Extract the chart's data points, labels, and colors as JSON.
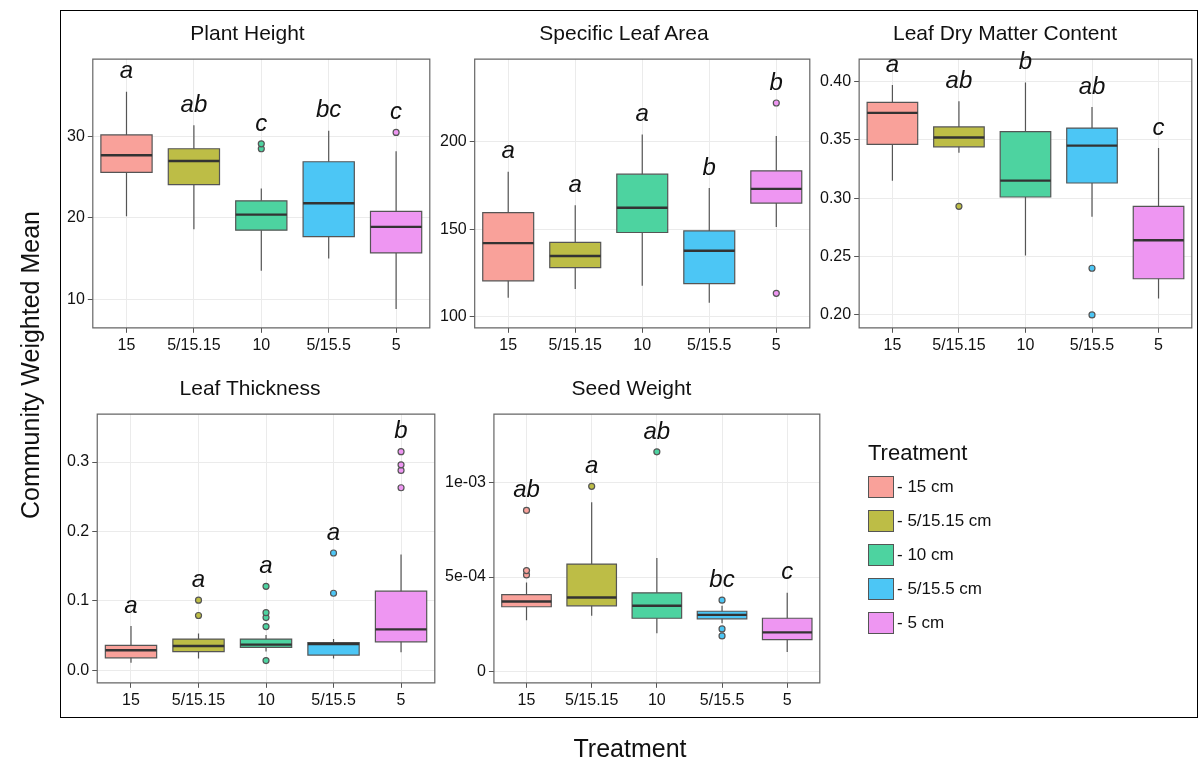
{
  "chart_data": [
    {
      "type": "box",
      "title": "Plant Height",
      "ylabel": "Community Weighted Mean",
      "categories": [
        "15",
        "5/15.15",
        "10",
        "5/15.5",
        "5"
      ],
      "ylim": [
        6.5,
        39.5
      ],
      "yticks": [
        10,
        20,
        30
      ],
      "grid": true,
      "series": [
        {
          "color": "#f9a19a",
          "boxes": [
            {
              "low": 20.2,
              "q1": 25.6,
              "median": 27.7,
              "q3": 30.2,
              "high": 35.5
            },
            null,
            null,
            null,
            null
          ]
        },
        {
          "color": "#bdbd46",
          "boxes": [
            null,
            {
              "low": 18.6,
              "q1": 24.1,
              "median": 27.0,
              "q3": 28.5,
              "high": 31.4
            },
            null,
            null,
            null
          ]
        },
        {
          "color": "#4dd3a0",
          "boxes": [
            null,
            null,
            {
              "low": 13.5,
              "q1": 18.5,
              "median": 20.4,
              "q3": 22.1,
              "high": 23.6,
              "outliers": [
                29.1,
                28.5
              ]
            },
            null,
            null
          ]
        },
        {
          "color": "#4cc6f5",
          "boxes": [
            null,
            null,
            null,
            {
              "low": 15.0,
              "q1": 17.7,
              "median": 21.8,
              "q3": 26.9,
              "high": 30.7
            },
            null
          ]
        },
        {
          "color": "#ee96f2",
          "boxes": [
            null,
            null,
            null,
            null,
            {
              "low": 8.8,
              "q1": 15.7,
              "median": 18.9,
              "q3": 20.8,
              "high": 28.2,
              "outliers": [
                30.5
              ]
            }
          ]
        }
      ],
      "annotations": [
        "a",
        "ab",
        "c",
        "bc",
        "c"
      ]
    },
    {
      "type": "box",
      "title": "Specific Leaf Area",
      "categories": [
        "15",
        "5/15.15",
        "10",
        "5/15.5",
        "5"
      ],
      "ylim": [
        93.7,
        247
      ],
      "yticks": [
        100,
        150,
        200
      ],
      "grid": true,
      "series": [
        {
          "color": "#f9a19a",
          "boxes": [
            {
              "low": 110.9,
              "q1": 120.5,
              "median": 142.0,
              "q3": 159.4,
              "high": 182.8
            },
            null,
            null,
            null,
            null
          ]
        },
        {
          "color": "#bdbd46",
          "boxes": [
            null,
            {
              "low": 115.9,
              "q1": 128.0,
              "median": 134.7,
              "q3": 142.4,
              "high": 163.6
            },
            null,
            null,
            null
          ]
        },
        {
          "color": "#4dd3a0",
          "boxes": [
            null,
            null,
            {
              "low": 117.7,
              "q1": 148.1,
              "median": 162.2,
              "q3": 181.4,
              "high": 204
            },
            null,
            null
          ]
        },
        {
          "color": "#4cc6f5",
          "boxes": [
            null,
            null,
            null,
            {
              "low": 108.0,
              "q1": 118.9,
              "median": 137.7,
              "q3": 149.0,
              "high": 173.5
            },
            null
          ]
        },
        {
          "color": "#ee96f2",
          "boxes": [
            null,
            null,
            null,
            null,
            {
              "low": 151.3,
              "q1": 164.9,
              "median": 173.0,
              "q3": 183.3,
              "high": 203.1,
              "outliers": [
                222.0,
                113.4
              ]
            }
          ]
        }
      ],
      "annotations": [
        "a",
        "a",
        "a",
        "b",
        "b"
      ]
    },
    {
      "type": "box",
      "title": "Leaf Dry Matter Content",
      "categories": [
        "15",
        "5/15.15",
        "10",
        "5/15.5",
        "5"
      ],
      "ylim": [
        0.189,
        0.419
      ],
      "yticks": [
        {
          "value": 0.2,
          "label": "0.20"
        },
        0.25,
        {
          "value": 0.3,
          "label": "0.30"
        },
        0.35,
        {
          "value": 0.4,
          "label": "0.40"
        }
      ],
      "grid": true,
      "series": [
        {
          "color": "#f9a19a",
          "boxes": [
            {
              "low": 0.315,
              "q1": 0.346,
              "median": 0.373,
              "q3": 0.382,
              "high": 0.397
            },
            null,
            null,
            null,
            null
          ]
        },
        {
          "color": "#bdbd46",
          "boxes": [
            null,
            {
              "low": 0.339,
              "q1": 0.344,
              "median": 0.352,
              "q3": 0.361,
              "high": 0.383,
              "outliers": [
                0.293
              ]
            },
            null,
            null,
            null
          ]
        },
        {
          "color": "#4dd3a0",
          "boxes": [
            null,
            null,
            {
              "low": 0.251,
              "q1": 0.301,
              "median": 0.315,
              "q3": 0.357,
              "high": 0.399
            },
            null,
            null
          ]
        },
        {
          "color": "#4cc6f5",
          "boxes": [
            null,
            null,
            null,
            {
              "low": 0.284,
              "q1": 0.313,
              "median": 0.345,
              "q3": 0.36,
              "high": 0.378,
              "outliers": [
                0.24,
                0.2
              ]
            },
            null
          ]
        },
        {
          "color": "#ee96f2",
          "boxes": [
            null,
            null,
            null,
            null,
            {
              "low": 0.214,
              "q1": 0.231,
              "median": 0.264,
              "q3": 0.293,
              "high": 0.343
            }
          ]
        }
      ],
      "annotations": [
        "a",
        "ab",
        "b",
        "ab",
        "c"
      ]
    },
    {
      "type": "box",
      "title": "Leaf Thickness",
      "categories": [
        "15",
        "5/15.15",
        "10",
        "5/15.5",
        "5"
      ],
      "ylim": [
        -0.018,
        0.369
      ],
      "yticks": [
        {
          "value": 0,
          "label": "0.0"
        },
        0.1,
        0.2,
        0.3
      ],
      "grid": true,
      "series": [
        {
          "color": "#f9a19a",
          "boxes": [
            {
              "low": 0.011,
              "q1": 0.018,
              "median": 0.029,
              "q3": 0.036,
              "high": 0.064
            },
            null,
            null,
            null,
            null
          ]
        },
        {
          "color": "#bdbd46",
          "boxes": [
            null,
            {
              "low": 0.017,
              "q1": 0.027,
              "median": 0.035,
              "q3": 0.045,
              "high": 0.053,
              "outliers": [
                0.101,
                0.079
              ]
            },
            null,
            null,
            null
          ]
        },
        {
          "color": "#4dd3a0",
          "boxes": [
            null,
            null,
            {
              "low": 0.027,
              "q1": 0.033,
              "median": 0.037,
              "q3": 0.045,
              "high": 0.051,
              "outliers": [
                0.121,
                0.083,
                0.076,
                0.063,
                0.014
              ]
            },
            null,
            null
          ]
        },
        {
          "color": "#4cc6f5",
          "boxes": [
            null,
            null,
            null,
            {
              "low": 0.017,
              "q1": 0.022,
              "median": 0.038,
              "q3": 0.04,
              "high": 0.045,
              "outliers": [
                0.169,
                0.111
              ]
            },
            null
          ]
        },
        {
          "color": "#ee96f2",
          "boxes": [
            null,
            null,
            null,
            null,
            {
              "low": 0.026,
              "q1": 0.041,
              "median": 0.059,
              "q3": 0.114,
              "high": 0.167,
              "outliers": [
                0.315,
                0.296,
                0.288,
                0.263
              ]
            }
          ]
        }
      ],
      "annotations": [
        "a",
        "a",
        "a",
        "a",
        "b"
      ]
    },
    {
      "type": "box",
      "title": "Seed Weight",
      "xlabel": "Treatment",
      "legend": "right",
      "legend_title": "Treatment",
      "categories": [
        "15",
        "5/15.15",
        "10",
        "5/15.5",
        "5"
      ],
      "ylim": [
        -6.2e-05,
        0.001365
      ],
      "yticks": [
        0,
        {
          "value": 0.0005,
          "label": "5e-04"
        },
        {
          "value": 0.001,
          "label": "1e-03"
        }
      ],
      "grid": true,
      "series": [
        {
          "name": "- 15 cm",
          "color": "#f9a19a",
          "boxes": [
            {
              "low": 0.00027,
              "q1": 0.000342,
              "median": 0.00037,
              "q3": 0.000406,
              "high": 0.000471,
              "outliers": [
                0.000854,
                0.000534,
                0.000511
              ]
            },
            null,
            null,
            null,
            null
          ]
        },
        {
          "name": "- 5/15.15 cm",
          "color": "#bdbd46",
          "boxes": [
            null,
            {
              "low": 0.000294,
              "q1": 0.000347,
              "median": 0.000391,
              "q3": 0.000569,
              "high": 0.000897,
              "outliers": [
                0.000982
              ]
            },
            null,
            null,
            null
          ]
        },
        {
          "name": "- 10 cm",
          "color": "#4dd3a0",
          "boxes": [
            null,
            null,
            {
              "low": 0.000201,
              "q1": 0.000281,
              "median": 0.000347,
              "q3": 0.000416,
              "high": 0.000601,
              "outliers": [
                0.001165
              ]
            },
            null,
            null
          ]
        },
        {
          "name": "- 5/15.5 cm",
          "color": "#4cc6f5",
          "boxes": [
            null,
            null,
            null,
            {
              "low": 0.000254,
              "q1": 0.000278,
              "median": 0.000299,
              "q3": 0.000318,
              "high": 0.000347,
              "outliers": [
                0.000377,
                0.000224,
                0.000187
              ]
            },
            null
          ]
        },
        {
          "name": "- 5 cm",
          "color": "#ee96f2",
          "boxes": [
            null,
            null,
            null,
            null,
            {
              "low": 0.000101,
              "q1": 0.000167,
              "median": 0.000206,
              "q3": 0.000281,
              "high": 0.000416
            }
          ]
        }
      ],
      "annotations": [
        "ab",
        "a",
        "ab",
        "bc",
        "c"
      ]
    }
  ]
}
